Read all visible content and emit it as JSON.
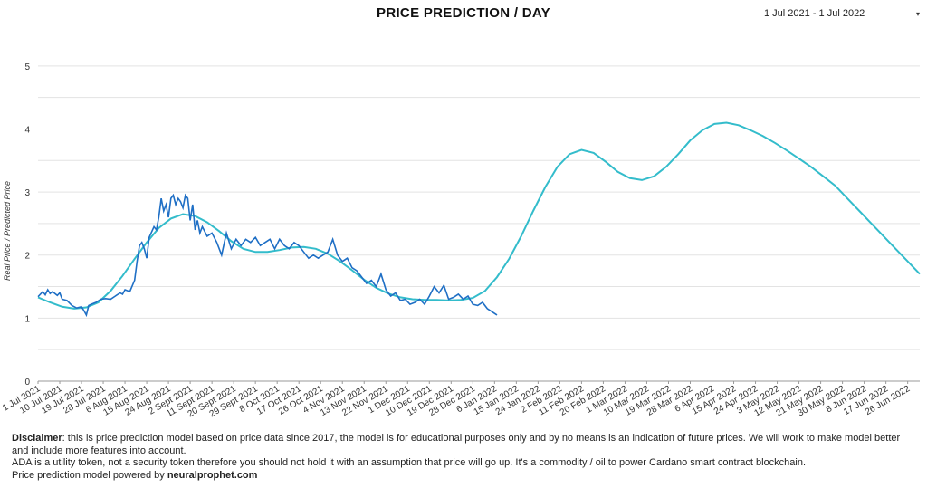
{
  "header": {
    "title": "PRICE PREDICTION / DAY",
    "date_range": "1 Jul 2021 - 1 Jul 2022",
    "caret": "▾"
  },
  "footer": {
    "disclaimer_label": "Disclaimer",
    "disclaimer_text": ": this is price prediction model based on price data since 2017, the model is for educational purposes only and by no means is an indication of future prices. We will work to make model better and include more features into account.",
    "line2": "ADA is a utility token, not a security token therefore you should not hold it with an assumption that price will go up. It's a commodity / oil to power Cardano smart contract blockchain.",
    "line3_prefix": "Price prediction model powered by ",
    "line3_link": "neuralprophet.com"
  },
  "colors": {
    "real": "#1f6fc5",
    "predicted": "#33bccb",
    "grid": "#e3e3e3",
    "axis_text": "#333333"
  },
  "chart_data": {
    "type": "line",
    "title": "PRICE PREDICTION / DAY",
    "xlabel": "",
    "ylabel": "Real Price / Predicted Price",
    "ylim": [
      0,
      5.4
    ],
    "yticks": [
      0,
      1,
      2,
      3,
      4,
      5
    ],
    "xlim": [
      0,
      365
    ],
    "grid": true,
    "x_tick_days": [
      0,
      9,
      18,
      27,
      36,
      45,
      54,
      63,
      72,
      81,
      90,
      99,
      108,
      117,
      126,
      135,
      144,
      153,
      162,
      171,
      180,
      189,
      198,
      207,
      216,
      225,
      234,
      243,
      252,
      261,
      270,
      279,
      288,
      297,
      306,
      315,
      324,
      333,
      342,
      351,
      360
    ],
    "x_tick_labels": [
      "1 Jul 2021",
      "10 Jul 2021",
      "19 Jul 2021",
      "28 Jul 2021",
      "6 Aug 2021",
      "15 Aug 2021",
      "24 Aug 2021",
      "2 Sept 2021",
      "11 Sept 2021",
      "20 Sept 2021",
      "29 Sept 2021",
      "8 Oct 2021",
      "17 Oct 2021",
      "26 Oct 2021",
      "4 Nov 2021",
      "13 Nov 2021",
      "22 Nov 2021",
      "1 Dec 2021",
      "10 Dec 2021",
      "19 Dec 2021",
      "28 Dec 2021",
      "6 Jan 2022",
      "15 Jan 2022",
      "24 Jan 2022",
      "2 Feb 2022",
      "11 Feb 2022",
      "20 Feb 2022",
      "1 Mar 2022",
      "10 Mar 2022",
      "19 Mar 2022",
      "28 Mar 2022",
      "6 Apr 2022",
      "15 Apr 2022",
      "24 Apr 2022",
      "3 May 2022",
      "12 May 2022",
      "21 May 2022",
      "30 May 2022",
      "8 Jun 2022",
      "17 Jun 2022",
      "26 Jun 2022"
    ],
    "series": [
      {
        "name": "Real Price",
        "x": [
          0,
          2,
          3,
          4,
          5,
          6,
          8,
          9,
          10,
          12,
          14,
          16,
          18,
          19,
          20,
          21,
          22,
          24,
          26,
          28,
          30,
          32,
          34,
          35,
          36,
          38,
          40,
          41,
          42,
          43,
          44,
          45,
          46,
          48,
          49,
          50,
          51,
          52,
          53,
          54,
          55,
          56,
          57,
          58,
          59,
          60,
          61,
          62,
          63,
          64,
          65,
          66,
          67,
          68,
          70,
          72,
          74,
          76,
          78,
          80,
          82,
          84,
          86,
          88,
          90,
          92,
          94,
          96,
          98,
          100,
          102,
          104,
          106,
          108,
          110,
          112,
          114,
          116,
          118,
          120,
          122,
          124,
          126,
          128,
          130,
          132,
          134,
          136,
          138,
          140,
          142,
          144,
          146,
          148,
          150,
          152,
          154,
          156,
          158,
          160,
          162,
          164,
          166,
          168,
          170,
          172,
          174,
          176,
          178,
          180,
          182,
          184,
          186,
          188,
          190
        ],
        "y": [
          1.34,
          1.42,
          1.37,
          1.45,
          1.39,
          1.42,
          1.36,
          1.4,
          1.3,
          1.28,
          1.2,
          1.16,
          1.18,
          1.12,
          1.05,
          1.2,
          1.22,
          1.25,
          1.3,
          1.31,
          1.3,
          1.35,
          1.4,
          1.38,
          1.45,
          1.42,
          1.6,
          1.9,
          2.15,
          2.2,
          2.1,
          1.95,
          2.28,
          2.45,
          2.4,
          2.6,
          2.9,
          2.7,
          2.8,
          2.6,
          2.9,
          2.95,
          2.8,
          2.9,
          2.85,
          2.75,
          2.95,
          2.9,
          2.55,
          2.8,
          2.4,
          2.55,
          2.35,
          2.45,
          2.3,
          2.35,
          2.2,
          2.0,
          2.35,
          2.1,
          2.25,
          2.15,
          2.25,
          2.2,
          2.28,
          2.15,
          2.2,
          2.25,
          2.1,
          2.25,
          2.15,
          2.1,
          2.2,
          2.15,
          2.05,
          1.95,
          2.0,
          1.95,
          2.0,
          2.05,
          2.25,
          2.0,
          1.9,
          1.95,
          1.8,
          1.75,
          1.65,
          1.55,
          1.6,
          1.5,
          1.7,
          1.45,
          1.35,
          1.4,
          1.28,
          1.3,
          1.22,
          1.25,
          1.3,
          1.22,
          1.35,
          1.5,
          1.4,
          1.52,
          1.3,
          1.33,
          1.38,
          1.3,
          1.35,
          1.22,
          1.2,
          1.25,
          1.15,
          1.1,
          1.05
        ]
      },
      {
        "name": "Predicted Price",
        "x": [
          0,
          5,
          10,
          15,
          20,
          25,
          30,
          35,
          40,
          45,
          50,
          55,
          60,
          65,
          70,
          75,
          80,
          85,
          90,
          95,
          100,
          105,
          110,
          115,
          120,
          125,
          130,
          135,
          140,
          145,
          150,
          155,
          160,
          165,
          170,
          175,
          180,
          185,
          190,
          195,
          200,
          205,
          210,
          215,
          220,
          225,
          230,
          235,
          240,
          245,
          250,
          255,
          260,
          265,
          270,
          275,
          280,
          285,
          290,
          295,
          300,
          305,
          310,
          315,
          320,
          325,
          330,
          335,
          340,
          345,
          350,
          355,
          360,
          365
        ],
        "y": [
          1.33,
          1.25,
          1.18,
          1.15,
          1.17,
          1.25,
          1.43,
          1.67,
          1.94,
          2.2,
          2.43,
          2.58,
          2.65,
          2.62,
          2.52,
          2.38,
          2.22,
          2.1,
          2.05,
          2.05,
          2.08,
          2.12,
          2.13,
          2.1,
          2.02,
          1.9,
          1.76,
          1.61,
          1.48,
          1.39,
          1.33,
          1.3,
          1.29,
          1.29,
          1.28,
          1.29,
          1.32,
          1.43,
          1.65,
          1.94,
          2.3,
          2.7,
          3.08,
          3.4,
          3.6,
          3.67,
          3.62,
          3.48,
          3.32,
          3.22,
          3.19,
          3.25,
          3.4,
          3.6,
          3.82,
          3.98,
          4.08,
          4.1,
          4.06,
          3.98,
          3.89,
          3.78,
          3.66,
          3.53,
          3.4,
          3.25,
          3.1,
          2.9,
          2.7,
          2.5,
          2.3,
          2.1,
          1.9,
          1.7
        ]
      }
    ]
  }
}
